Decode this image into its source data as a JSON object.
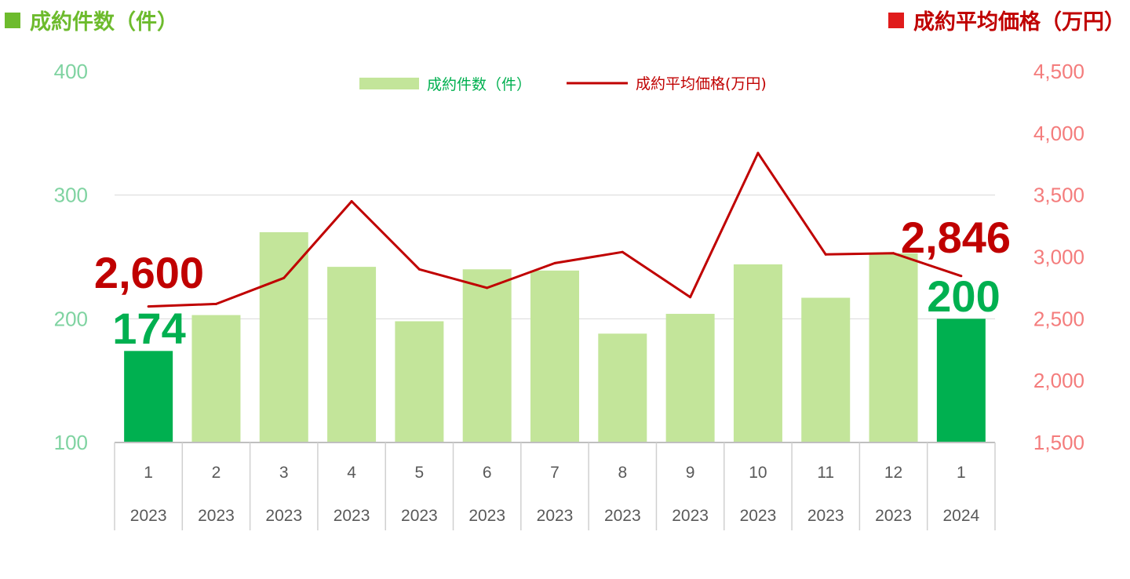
{
  "header": {
    "left_title": "成約件数（件）",
    "right_title": "成約平均価格（万円）"
  },
  "colors": {
    "bar_light": "#c3e59a",
    "bar_highlight": "#00b050",
    "line": "#c00000",
    "left_axis": "#7fd3a1",
    "right_axis": "#f47c7c",
    "highlight_count_label": "#00b050",
    "highlight_price_label": "#c00000"
  },
  "chart_data": {
    "type": "bar",
    "categories": [
      "1",
      "2",
      "3",
      "4",
      "5",
      "6",
      "7",
      "8",
      "9",
      "10",
      "11",
      "12",
      "1"
    ],
    "years": [
      "2023",
      "2023",
      "2023",
      "2023",
      "2023",
      "2023",
      "2023",
      "2023",
      "2023",
      "2023",
      "2023",
      "2023",
      "2024"
    ],
    "series": [
      {
        "name": "成約件数（件）",
        "type": "bar",
        "axis": "left",
        "values": [
          174,
          203,
          270,
          242,
          198,
          240,
          239,
          188,
          204,
          244,
          217,
          253,
          200
        ],
        "highlight_indices": [
          0,
          12
        ]
      },
      {
        "name": "成約平均価格(万円)",
        "type": "line",
        "axis": "right",
        "values": [
          2600,
          2620,
          2830,
          3450,
          2900,
          2750,
          2950,
          3040,
          2675,
          3840,
          3020,
          3030,
          2846
        ]
      }
    ],
    "y_left": {
      "ylim": [
        100,
        400
      ],
      "ticks": [
        "100",
        "200",
        "300",
        "400"
      ]
    },
    "y_right": {
      "ylim": [
        1500,
        4500
      ],
      "ticks": [
        "1,500",
        "2,000",
        "2,500",
        "3,000",
        "3,500",
        "4,000",
        "4,500"
      ]
    },
    "annotations": {
      "first_price": "2,600",
      "first_count": "174",
      "last_price": "2,846",
      "last_count": "200"
    },
    "legend": [
      "成約件数（件）",
      "成約平均価格(万円)"
    ],
    "legend_position": "top-center",
    "grid": true
  }
}
